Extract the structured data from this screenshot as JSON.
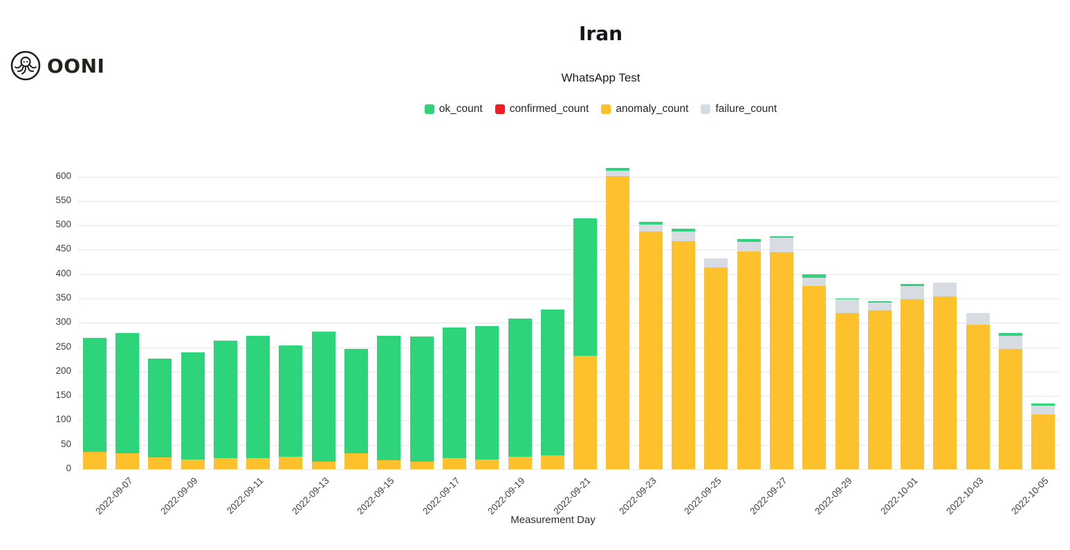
{
  "logo": {
    "text": "OONI"
  },
  "chart_data": {
    "type": "bar",
    "stacked": true,
    "title": "Iran",
    "subtitle": "WhatsApp Test",
    "xlabel": "Measurement Day",
    "ylabel": "",
    "grid": true,
    "legend_position": "top-center",
    "y_ticks": [
      0,
      50,
      100,
      150,
      200,
      250,
      300,
      350,
      400,
      450,
      500,
      550,
      600
    ],
    "y_max": 642,
    "categories": [
      "2022-09-06",
      "2022-09-07",
      "2022-09-08",
      "2022-09-09",
      "2022-09-10",
      "2022-09-11",
      "2022-09-12",
      "2022-09-13",
      "2022-09-14",
      "2022-09-15",
      "2022-09-16",
      "2022-09-17",
      "2022-09-18",
      "2022-09-19",
      "2022-09-20",
      "2022-09-21",
      "2022-09-22",
      "2022-09-23",
      "2022-09-24",
      "2022-09-25",
      "2022-09-26",
      "2022-09-27",
      "2022-09-28",
      "2022-09-29",
      "2022-09-30",
      "2022-10-01",
      "2022-10-02",
      "2022-10-03",
      "2022-10-04",
      "2022-10-05"
    ],
    "x_tick_labels": [
      "2022-09-07",
      "2022-09-09",
      "2022-09-11",
      "2022-09-13",
      "2022-09-15",
      "2022-09-17",
      "2022-09-19",
      "2022-09-21",
      "2022-09-23",
      "2022-09-25",
      "2022-09-27",
      "2022-09-29",
      "2022-10-01",
      "2022-10-03",
      "2022-10-05"
    ],
    "stack_order": [
      "anomaly_count",
      "confirmed_count",
      "failure_count",
      "ok_count"
    ],
    "series": [
      {
        "name": "ok_count",
        "color": "#2ed47a",
        "values": [
          234,
          246,
          203,
          219,
          241,
          251,
          228,
          267,
          214,
          255,
          257,
          268,
          273,
          284,
          299,
          281,
          6,
          6,
          6,
          0,
          5,
          3,
          7,
          2,
          4,
          5,
          0,
          0,
          5,
          4
        ]
      },
      {
        "name": "confirmed_count",
        "color": "#ee1d23",
        "values": [
          0,
          0,
          0,
          0,
          0,
          0,
          0,
          0,
          0,
          0,
          0,
          0,
          0,
          0,
          0,
          0,
          0,
          0,
          0,
          0,
          0,
          0,
          0,
          0,
          0,
          0,
          0,
          0,
          0,
          0
        ]
      },
      {
        "name": "anomaly_count",
        "color": "#fdc12e",
        "values": [
          35,
          33,
          24,
          20,
          23,
          22,
          26,
          15,
          32,
          18,
          15,
          23,
          20,
          25,
          29,
          233,
          601,
          488,
          467,
          414,
          446,
          445,
          376,
          321,
          326,
          348,
          354,
          296,
          246,
          112
        ]
      },
      {
        "name": "failure_count",
        "color": "#d6dce1",
        "values": [
          0,
          0,
          0,
          0,
          0,
          0,
          0,
          0,
          0,
          0,
          0,
          0,
          0,
          0,
          0,
          0,
          11,
          14,
          20,
          18,
          21,
          30,
          17,
          27,
          15,
          27,
          29,
          25,
          28,
          19
        ]
      }
    ]
  }
}
